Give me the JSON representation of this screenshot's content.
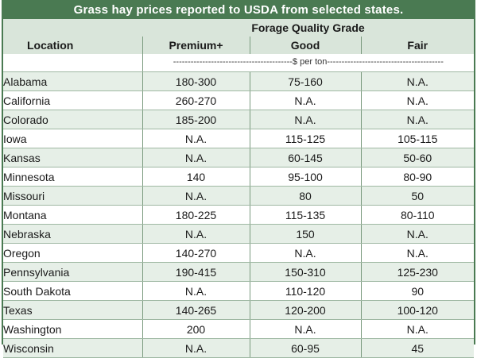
{
  "title": "Grass hay prices reported to USDA from selected states.",
  "header": {
    "location_label": "Location",
    "group_label": "Forage Quality Grade",
    "columns": [
      "Premium+",
      "Good",
      "Fair"
    ],
    "unit_label": "-----------------------------------------$ per ton-----------------------------------------"
  },
  "rows": [
    {
      "location": "Alabama",
      "premium": "180-300",
      "good": "75-160",
      "fair": "N.A."
    },
    {
      "location": "California",
      "premium": "260-270",
      "good": "N.A.",
      "fair": "N.A."
    },
    {
      "location": "Colorado",
      "premium": "185-200",
      "good": "N.A.",
      "fair": "N.A."
    },
    {
      "location": "Iowa",
      "premium": "N.A.",
      "good": "115-125",
      "fair": "105-115"
    },
    {
      "location": "Kansas",
      "premium": "N.A.",
      "good": "60-145",
      "fair": "50-60"
    },
    {
      "location": "Minnesota",
      "premium": "140",
      "good": "95-100",
      "fair": "80-90"
    },
    {
      "location": "Missouri",
      "premium": "N.A.",
      "good": "80",
      "fair": "50"
    },
    {
      "location": "Montana",
      "premium": "180-225",
      "good": "115-135",
      "fair": "80-110"
    },
    {
      "location": "Nebraska",
      "premium": "N.A.",
      "good": "150",
      "fair": "N.A."
    },
    {
      "location": "Oregon",
      "premium": "140-270",
      "good": "N.A.",
      "fair": "N.A."
    },
    {
      "location": "Pennsylvania",
      "premium": "190-415",
      "good": "150-310",
      "fair": "125-230"
    },
    {
      "location": "South Dakota",
      "premium": "N.A.",
      "good": "110-120",
      "fair": "90"
    },
    {
      "location": "Texas",
      "premium": "140-265",
      "good": "120-200",
      "fair": "100-120"
    },
    {
      "location": "Washington",
      "premium": "200",
      "good": "N.A.",
      "fair": "N.A."
    },
    {
      "location": "Wisconsin",
      "premium": "N.A.",
      "good": "60-95",
      "fair": "45"
    }
  ],
  "colors": {
    "title_bg": "#4a7a52",
    "header_bg": "#d9e5da",
    "stripe_bg": "#e6efe7"
  }
}
